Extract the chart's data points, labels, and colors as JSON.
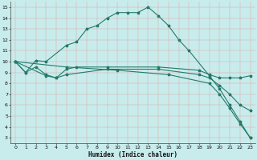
{
  "xlabel": "Humidex (Indice chaleur)",
  "bg_color": "#c8ecec",
  "grid_color": "#aadddd",
  "line_color": "#267a6a",
  "xlim": [
    -0.5,
    23.5
  ],
  "ylim": [
    2.5,
    15.5
  ],
  "xticks": [
    0,
    1,
    2,
    3,
    4,
    5,
    6,
    7,
    8,
    9,
    10,
    11,
    12,
    13,
    14,
    15,
    16,
    17,
    18,
    19,
    20,
    21,
    22,
    23
  ],
  "yticks": [
    3,
    4,
    5,
    6,
    7,
    8,
    9,
    10,
    11,
    12,
    13,
    14,
    15
  ],
  "line1_x": [
    0,
    1,
    2,
    3,
    5,
    6,
    7,
    8,
    9,
    10,
    11,
    12,
    13,
    14,
    15,
    16,
    17,
    19,
    20,
    21,
    22,
    23
  ],
  "line1_y": [
    10,
    9,
    10.1,
    10,
    11.5,
    11.8,
    13,
    13.3,
    14,
    14.5,
    14.5,
    14.5,
    15,
    14.2,
    13.3,
    12,
    11,
    8.7,
    7.5,
    6,
    4.5,
    3
  ],
  "line2_x": [
    0,
    1,
    2,
    3,
    4,
    5,
    6,
    9,
    14,
    18,
    19,
    20,
    21,
    22,
    23
  ],
  "line2_y": [
    10,
    9,
    9.5,
    8.8,
    8.5,
    9.3,
    9.5,
    9.5,
    9.5,
    9.2,
    8.8,
    8.5,
    8.5,
    8.5,
    8.7
  ],
  "line3_x": [
    0,
    3,
    4,
    5,
    9,
    14,
    18,
    19,
    20,
    21,
    22,
    23
  ],
  "line3_y": [
    10,
    8.7,
    8.5,
    8.8,
    9.3,
    9.3,
    8.8,
    8.5,
    7.8,
    7.0,
    6.0,
    5.5
  ],
  "line4_x": [
    0,
    5,
    10,
    15,
    19,
    20,
    21,
    22,
    23
  ],
  "line4_y": [
    10,
    9.5,
    9.2,
    8.8,
    8.0,
    7.0,
    5.7,
    4.3,
    3.0
  ]
}
